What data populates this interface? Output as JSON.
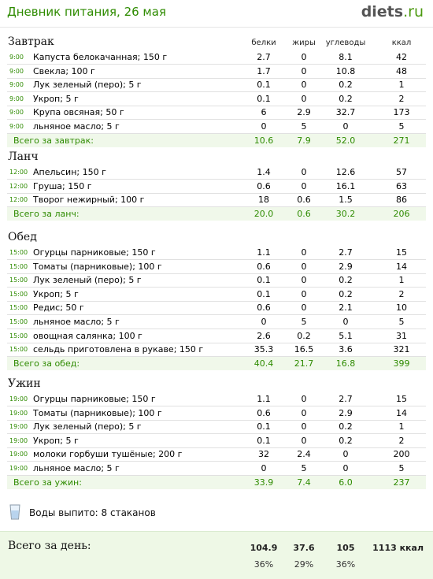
{
  "header": {
    "title": "Дневник питания, 26 мая",
    "logo_main": "diets",
    "logo_suffix": ".ru"
  },
  "columns": {
    "protein": "белки",
    "fat": "жиры",
    "carbs": "углеводы",
    "kcal": "ккал"
  },
  "meals": [
    {
      "title": "Завтрак",
      "items": [
        {
          "time": "9:00",
          "name": "Капуста белокачанная; 150 г",
          "protein": "2.7",
          "fat": "0",
          "carbs": "8.1",
          "kcal": "42"
        },
        {
          "time": "9:00",
          "name": "Свекла; 100 г",
          "protein": "1.7",
          "fat": "0",
          "carbs": "10.8",
          "kcal": "48"
        },
        {
          "time": "9:00",
          "name": "Лук зеленый (перо); 5 г",
          "protein": "0.1",
          "fat": "0",
          "carbs": "0.2",
          "kcal": "1"
        },
        {
          "time": "9:00",
          "name": "Укроп; 5 г",
          "protein": "0.1",
          "fat": "0",
          "carbs": "0.2",
          "kcal": "2"
        },
        {
          "time": "9:00",
          "name": "Крупа овсяная; 50 г",
          "protein": "6",
          "fat": "2.9",
          "carbs": "32.7",
          "kcal": "173"
        },
        {
          "time": "9:00",
          "name": "льняное масло; 5 г",
          "protein": "0",
          "fat": "5",
          "carbs": "0",
          "kcal": "5"
        }
      ],
      "total": {
        "label": "Всего за завтрак:",
        "protein": "10.6",
        "fat": "7.9",
        "carbs": "52.0",
        "kcal": "271"
      }
    },
    {
      "title": "Ланч",
      "items": [
        {
          "time": "12:00",
          "name": "Апельсин; 150 г",
          "protein": "1.4",
          "fat": "0",
          "carbs": "12.6",
          "kcal": "57"
        },
        {
          "time": "12:00",
          "name": "Груша; 150 г",
          "protein": "0.6",
          "fat": "0",
          "carbs": "16.1",
          "kcal": "63"
        },
        {
          "time": "12:00",
          "name": "Творог нежирный; 100 г",
          "protein": "18",
          "fat": "0.6",
          "carbs": "1.5",
          "kcal": "86"
        }
      ],
      "total": {
        "label": "Всего за ланч:",
        "protein": "20.0",
        "fat": "0.6",
        "carbs": "30.2",
        "kcal": "206"
      }
    },
    {
      "title": "Обед",
      "items": [
        {
          "time": "15:00",
          "name": "Огурцы парниковые; 150 г",
          "protein": "1.1",
          "fat": "0",
          "carbs": "2.7",
          "kcal": "15"
        },
        {
          "time": "15:00",
          "name": "Томаты (парниковые); 100 г",
          "protein": "0.6",
          "fat": "0",
          "carbs": "2.9",
          "kcal": "14"
        },
        {
          "time": "15:00",
          "name": "Лук зеленый (перо); 5 г",
          "protein": "0.1",
          "fat": "0",
          "carbs": "0.2",
          "kcal": "1"
        },
        {
          "time": "15:00",
          "name": "Укроп; 5 г",
          "protein": "0.1",
          "fat": "0",
          "carbs": "0.2",
          "kcal": "2"
        },
        {
          "time": "15:00",
          "name": "Редис; 50 г",
          "protein": "0.6",
          "fat": "0",
          "carbs": "2.1",
          "kcal": "10"
        },
        {
          "time": "15:00",
          "name": "льняное масло; 5 г",
          "protein": "0",
          "fat": "5",
          "carbs": "0",
          "kcal": "5"
        },
        {
          "time": "15:00",
          "name": "овощная салянка; 100 г",
          "protein": "2.6",
          "fat": "0.2",
          "carbs": "5.1",
          "kcal": "31"
        },
        {
          "time": "15:00",
          "name": "сельдь приготовлена в рукаве; 150 г",
          "protein": "35.3",
          "fat": "16.5",
          "carbs": "3.6",
          "kcal": "321"
        }
      ],
      "total": {
        "label": "Всего за обед:",
        "protein": "40.4",
        "fat": "21.7",
        "carbs": "16.8",
        "kcal": "399"
      }
    },
    {
      "title": "Ужин",
      "items": [
        {
          "time": "19:00",
          "name": "Огурцы парниковые; 150 г",
          "protein": "1.1",
          "fat": "0",
          "carbs": "2.7",
          "kcal": "15"
        },
        {
          "time": "19:00",
          "name": "Томаты (парниковые); 100 г",
          "protein": "0.6",
          "fat": "0",
          "carbs": "2.9",
          "kcal": "14"
        },
        {
          "time": "19:00",
          "name": "Лук зеленый (перо); 5 г",
          "protein": "0.1",
          "fat": "0",
          "carbs": "0.2",
          "kcal": "1"
        },
        {
          "time": "19:00",
          "name": "Укроп; 5 г",
          "protein": "0.1",
          "fat": "0",
          "carbs": "0.2",
          "kcal": "2"
        },
        {
          "time": "19:00",
          "name": "молоки горбуши тушёные; 200 г",
          "protein": "32",
          "fat": "2.4",
          "carbs": "0",
          "kcal": "200"
        },
        {
          "time": "19:00",
          "name": "льняное масло; 5 г",
          "protein": "0",
          "fat": "5",
          "carbs": "0",
          "kcal": "5"
        }
      ],
      "total": {
        "label": "Всего за ужин:",
        "protein": "33.9",
        "fat": "7.4",
        "carbs": "6.0",
        "kcal": "237"
      }
    }
  ],
  "water": {
    "text": "Воды выпито: 8 стаканов",
    "icon": "water-glass-icon"
  },
  "day_total": {
    "label": "Всего за день:",
    "protein": "104.9",
    "fat": "37.6",
    "carbs": "105",
    "kcal": "1113 ккал",
    "protein_pct": "36%",
    "fat_pct": "29%",
    "carbs_pct": "36%"
  },
  "colors": {
    "accent": "#2e8b00",
    "total_bg": "#f0f8ea",
    "day_bg": "#eef8e6"
  }
}
